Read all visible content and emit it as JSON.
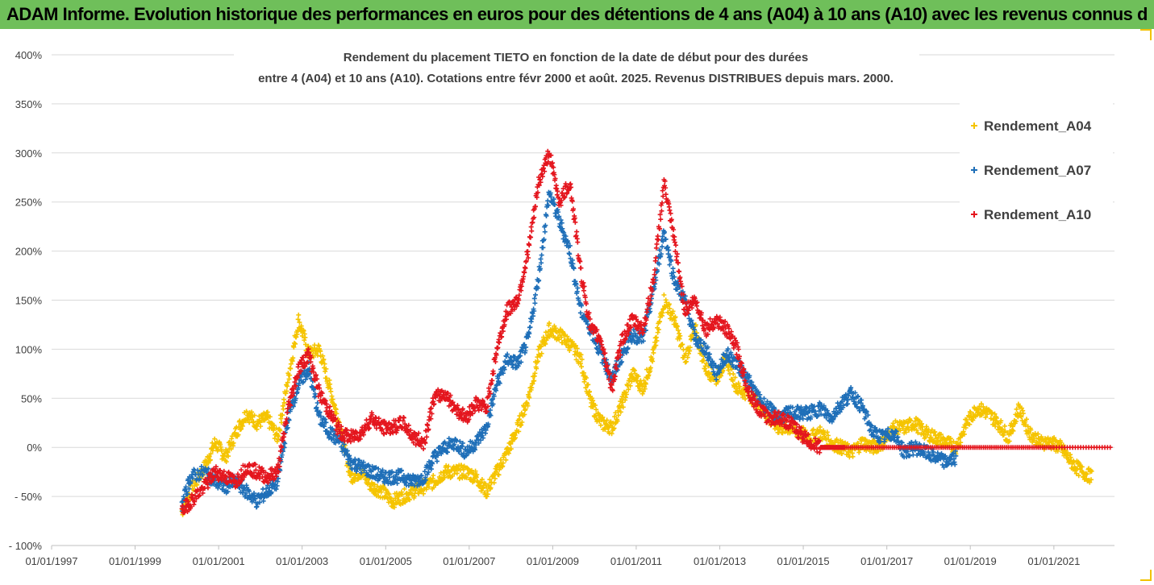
{
  "banner": {
    "title": "ADAM Informe. Evolution historique des performances en euros pour des détentions de 4 ans (A04) à 10 ans (A10) avec les revenus connus distribués"
  },
  "colors": {
    "banner_bg": "#6fbf5a",
    "corner_accent": "#f2c200",
    "A04": "#f5c400",
    "A07": "#1f6fb8",
    "A10": "#e4161e",
    "grid": "#d9d9d9"
  },
  "chart_data": {
    "type": "scatter",
    "title_line1": "Rendement du placement TIETO en fonction de la date de début pour des durées",
    "title_line2": "entre 4 (A04) et 10 ans (A10). Cotations entre févr 2000 et août. 2025. Revenus DISTRIBUES depuis mars. 2000.",
    "xlabel": "",
    "ylabel": "",
    "x_axis_type": "date",
    "xlim": [
      "1997-01-01",
      "2022-06-15"
    ],
    "ylim": [
      -100,
      400
    ],
    "y_unit": "%",
    "grid": "horizontal",
    "legend_position": "top-right",
    "x_tick_labels": [
      "01/01/1997",
      "01/01/1999",
      "01/01/2001",
      "01/01/2003",
      "01/01/2005",
      "01/01/2007",
      "01/01/2009",
      "01/01/2011",
      "01/01/2013",
      "01/01/2015",
      "01/01/2017",
      "01/01/2019",
      "01/01/2021"
    ],
    "x_tick_dates": [
      "1997-01-01",
      "1999-01-01",
      "2001-01-01",
      "2003-01-01",
      "2005-01-01",
      "2007-01-01",
      "2009-01-01",
      "2011-01-01",
      "2013-01-01",
      "2015-01-01",
      "2017-01-01",
      "2019-01-01",
      "2021-01-01"
    ],
    "y_tick_labels": [
      "- 100%",
      "- 50%",
      "0%",
      "50%",
      "100%",
      "150%",
      "200%",
      "250%",
      "300%",
      "350%",
      "400%"
    ],
    "y_tick_values": [
      -100,
      -50,
      0,
      50,
      100,
      150,
      200,
      250,
      300,
      350,
      400
    ],
    "series": [
      {
        "name": "Rendement_A04",
        "color": "#f5c400",
        "points": [
          [
            "2000-02-15",
            -65
          ],
          [
            "2000-05-01",
            -45
          ],
          [
            "2000-09-01",
            -20
          ],
          [
            "2000-12-01",
            5
          ],
          [
            "2001-03-01",
            -10
          ],
          [
            "2001-06-01",
            15
          ],
          [
            "2001-09-01",
            35
          ],
          [
            "2001-12-01",
            25
          ],
          [
            "2002-03-01",
            30
          ],
          [
            "2002-06-01",
            10
          ],
          [
            "2002-09-01",
            70
          ],
          [
            "2002-12-01",
            130
          ],
          [
            "2003-03-01",
            95
          ],
          [
            "2003-06-01",
            100
          ],
          [
            "2003-09-01",
            60
          ],
          [
            "2003-12-01",
            20
          ],
          [
            "2004-03-01",
            -30
          ],
          [
            "2004-06-01",
            -25
          ],
          [
            "2004-09-01",
            -40
          ],
          [
            "2004-12-01",
            -45
          ],
          [
            "2005-03-01",
            -55
          ],
          [
            "2005-06-01",
            -50
          ],
          [
            "2005-09-01",
            -45
          ],
          [
            "2005-12-01",
            -40
          ],
          [
            "2006-03-01",
            -35
          ],
          [
            "2006-06-01",
            -25
          ],
          [
            "2006-09-01",
            -25
          ],
          [
            "2006-12-01",
            -25
          ],
          [
            "2007-03-01",
            -30
          ],
          [
            "2007-06-01",
            -45
          ],
          [
            "2007-09-01",
            -25
          ],
          [
            "2007-12-01",
            -5
          ],
          [
            "2008-03-01",
            20
          ],
          [
            "2008-06-01",
            50
          ],
          [
            "2008-09-01",
            95
          ],
          [
            "2008-12-01",
            120
          ],
          [
            "2009-03-01",
            115
          ],
          [
            "2009-06-01",
            105
          ],
          [
            "2009-09-01",
            90
          ],
          [
            "2009-12-01",
            45
          ],
          [
            "2010-03-01",
            25
          ],
          [
            "2010-06-01",
            20
          ],
          [
            "2010-09-01",
            45
          ],
          [
            "2010-12-01",
            75
          ],
          [
            "2011-03-01",
            60
          ],
          [
            "2011-06-01",
            95
          ],
          [
            "2011-09-01",
            150
          ],
          [
            "2011-12-01",
            130
          ],
          [
            "2012-03-01",
            90
          ],
          [
            "2012-06-01",
            120
          ],
          [
            "2012-09-01",
            80
          ],
          [
            "2012-12-01",
            70
          ],
          [
            "2013-03-01",
            90
          ],
          [
            "2013-06-01",
            60
          ],
          [
            "2013-09-01",
            55
          ],
          [
            "2013-12-01",
            45
          ],
          [
            "2014-03-01",
            30
          ],
          [
            "2014-06-01",
            20
          ],
          [
            "2014-09-01",
            20
          ],
          [
            "2014-12-01",
            15
          ],
          [
            "2015-03-01",
            10
          ],
          [
            "2015-06-01",
            15
          ],
          [
            "2015-09-01",
            5
          ],
          [
            "2015-12-01",
            0
          ],
          [
            "2016-03-01",
            -5
          ],
          [
            "2016-06-01",
            5
          ],
          [
            "2016-09-01",
            0
          ],
          [
            "2016-12-01",
            5
          ],
          [
            "2017-03-01",
            20
          ],
          [
            "2017-06-01",
            20
          ],
          [
            "2017-09-01",
            25
          ],
          [
            "2017-12-01",
            15
          ],
          [
            "2018-03-01",
            10
          ],
          [
            "2018-06-01",
            5
          ],
          [
            "2018-09-01",
            0
          ],
          [
            "2018-12-01",
            25
          ],
          [
            "2019-03-01",
            40
          ],
          [
            "2019-06-01",
            35
          ],
          [
            "2019-09-01",
            25
          ],
          [
            "2019-12-01",
            10
          ],
          [
            "2020-03-01",
            40
          ],
          [
            "2020-06-01",
            15
          ],
          [
            "2020-09-01",
            5
          ],
          [
            "2020-12-01",
            5
          ],
          [
            "2021-03-01",
            0
          ],
          [
            "2021-06-01",
            -15
          ],
          [
            "2021-09-01",
            -25
          ],
          [
            "2021-12-01",
            -30
          ]
        ]
      },
      {
        "name": "Rendement_A07",
        "color": "#1f6fb8",
        "points": [
          [
            "2000-02-15",
            -60
          ],
          [
            "2000-05-01",
            -30
          ],
          [
            "2000-09-01",
            -25
          ],
          [
            "2000-12-01",
            -35
          ],
          [
            "2001-03-01",
            -40
          ],
          [
            "2001-06-01",
            -35
          ],
          [
            "2001-09-01",
            -45
          ],
          [
            "2001-12-01",
            -55
          ],
          [
            "2002-03-01",
            -45
          ],
          [
            "2002-06-01",
            -35
          ],
          [
            "2002-09-01",
            30
          ],
          [
            "2002-12-01",
            65
          ],
          [
            "2003-03-01",
            80
          ],
          [
            "2003-06-01",
            30
          ],
          [
            "2003-09-01",
            15
          ],
          [
            "2003-12-01",
            5
          ],
          [
            "2004-03-01",
            -15
          ],
          [
            "2004-06-01",
            -20
          ],
          [
            "2004-09-01",
            -25
          ],
          [
            "2004-12-01",
            -30
          ],
          [
            "2005-03-01",
            -30
          ],
          [
            "2005-06-01",
            -30
          ],
          [
            "2005-09-01",
            -35
          ],
          [
            "2005-12-01",
            -30
          ],
          [
            "2006-03-01",
            -10
          ],
          [
            "2006-06-01",
            0
          ],
          [
            "2006-09-01",
            5
          ],
          [
            "2006-12-01",
            -5
          ],
          [
            "2007-03-01",
            5
          ],
          [
            "2007-06-01",
            20
          ],
          [
            "2007-09-01",
            65
          ],
          [
            "2007-12-01",
            90
          ],
          [
            "2008-03-01",
            85
          ],
          [
            "2008-06-01",
            110
          ],
          [
            "2008-09-01",
            175
          ],
          [
            "2008-12-01",
            260
          ],
          [
            "2009-03-01",
            230
          ],
          [
            "2009-06-01",
            200
          ],
          [
            "2009-09-01",
            140
          ],
          [
            "2009-12-01",
            120
          ],
          [
            "2010-03-01",
            95
          ],
          [
            "2010-06-01",
            70
          ],
          [
            "2010-09-01",
            95
          ],
          [
            "2010-12-01",
            115
          ],
          [
            "2011-03-01",
            110
          ],
          [
            "2011-06-01",
            160
          ],
          [
            "2011-09-01",
            220
          ],
          [
            "2011-12-01",
            170
          ],
          [
            "2012-03-01",
            150
          ],
          [
            "2012-06-01",
            110
          ],
          [
            "2012-09-01",
            100
          ],
          [
            "2012-12-01",
            75
          ],
          [
            "2013-03-01",
            95
          ],
          [
            "2013-06-01",
            85
          ],
          [
            "2013-09-01",
            70
          ],
          [
            "2013-12-01",
            50
          ],
          [
            "2014-03-01",
            40
          ],
          [
            "2014-06-01",
            30
          ],
          [
            "2014-09-01",
            35
          ],
          [
            "2014-12-01",
            35
          ],
          [
            "2015-03-01",
            35
          ],
          [
            "2015-06-01",
            40
          ],
          [
            "2015-09-01",
            30
          ],
          [
            "2015-12-01",
            45
          ],
          [
            "2016-03-01",
            55
          ],
          [
            "2016-06-01",
            40
          ],
          [
            "2016-09-01",
            15
          ],
          [
            "2016-12-01",
            10
          ],
          [
            "2017-03-01",
            15
          ],
          [
            "2017-06-01",
            -5
          ],
          [
            "2017-09-01",
            0
          ],
          [
            "2017-12-01",
            -5
          ],
          [
            "2018-03-01",
            -10
          ],
          [
            "2018-06-01",
            -15
          ],
          [
            "2018-09-01",
            -10
          ]
        ]
      },
      {
        "name": "Rendement_A10",
        "color": "#e4161e",
        "points": [
          [
            "2000-02-15",
            -65
          ],
          [
            "2000-05-01",
            -55
          ],
          [
            "2000-09-01",
            -40
          ],
          [
            "2000-12-01",
            -25
          ],
          [
            "2001-03-01",
            -30
          ],
          [
            "2001-06-01",
            -35
          ],
          [
            "2001-09-01",
            -20
          ],
          [
            "2001-12-01",
            -25
          ],
          [
            "2002-03-01",
            -30
          ],
          [
            "2002-06-01",
            -25
          ],
          [
            "2002-09-01",
            40
          ],
          [
            "2002-12-01",
            80
          ],
          [
            "2003-03-01",
            95
          ],
          [
            "2003-06-01",
            55
          ],
          [
            "2003-09-01",
            35
          ],
          [
            "2003-12-01",
            15
          ],
          [
            "2004-03-01",
            10
          ],
          [
            "2004-06-01",
            15
          ],
          [
            "2004-09-01",
            30
          ],
          [
            "2004-12-01",
            20
          ],
          [
            "2005-03-01",
            20
          ],
          [
            "2005-06-01",
            25
          ],
          [
            "2005-09-01",
            10
          ],
          [
            "2005-12-01",
            5
          ],
          [
            "2006-03-01",
            50
          ],
          [
            "2006-06-01",
            55
          ],
          [
            "2006-09-01",
            40
          ],
          [
            "2006-12-01",
            30
          ],
          [
            "2007-03-01",
            45
          ],
          [
            "2007-06-01",
            40
          ],
          [
            "2007-09-01",
            100
          ],
          [
            "2007-12-01",
            140
          ],
          [
            "2008-03-01",
            150
          ],
          [
            "2008-06-01",
            200
          ],
          [
            "2008-09-01",
            270
          ],
          [
            "2008-12-01",
            300
          ],
          [
            "2009-03-01",
            250
          ],
          [
            "2009-06-01",
            270
          ],
          [
            "2009-09-01",
            180
          ],
          [
            "2009-12-01",
            120
          ],
          [
            "2010-03-01",
            110
          ],
          [
            "2010-06-01",
            60
          ],
          [
            "2010-09-01",
            110
          ],
          [
            "2010-12-01",
            130
          ],
          [
            "2011-03-01",
            120
          ],
          [
            "2011-06-01",
            170
          ],
          [
            "2011-09-01",
            270
          ],
          [
            "2011-12-01",
            210
          ],
          [
            "2012-03-01",
            140
          ],
          [
            "2012-06-01",
            150
          ],
          [
            "2012-09-01",
            120
          ],
          [
            "2012-12-01",
            130
          ],
          [
            "2013-03-01",
            120
          ],
          [
            "2013-06-01",
            100
          ],
          [
            "2013-09-01",
            60
          ],
          [
            "2013-12-01",
            40
          ],
          [
            "2014-03-01",
            30
          ],
          [
            "2014-06-01",
            30
          ],
          [
            "2014-09-01",
            25
          ],
          [
            "2014-12-01",
            15
          ],
          [
            "2015-03-01",
            5
          ],
          [
            "2015-06-01",
            0
          ],
          [
            "2015-09-01",
            0
          ],
          [
            "2016-01-01",
            0
          ],
          [
            "2017-01-01",
            0
          ],
          [
            "2018-01-01",
            0
          ],
          [
            "2019-01-01",
            0
          ],
          [
            "2020-01-01",
            0
          ],
          [
            "2021-01-01",
            0
          ],
          [
            "2022-06-01",
            0
          ]
        ]
      }
    ]
  }
}
